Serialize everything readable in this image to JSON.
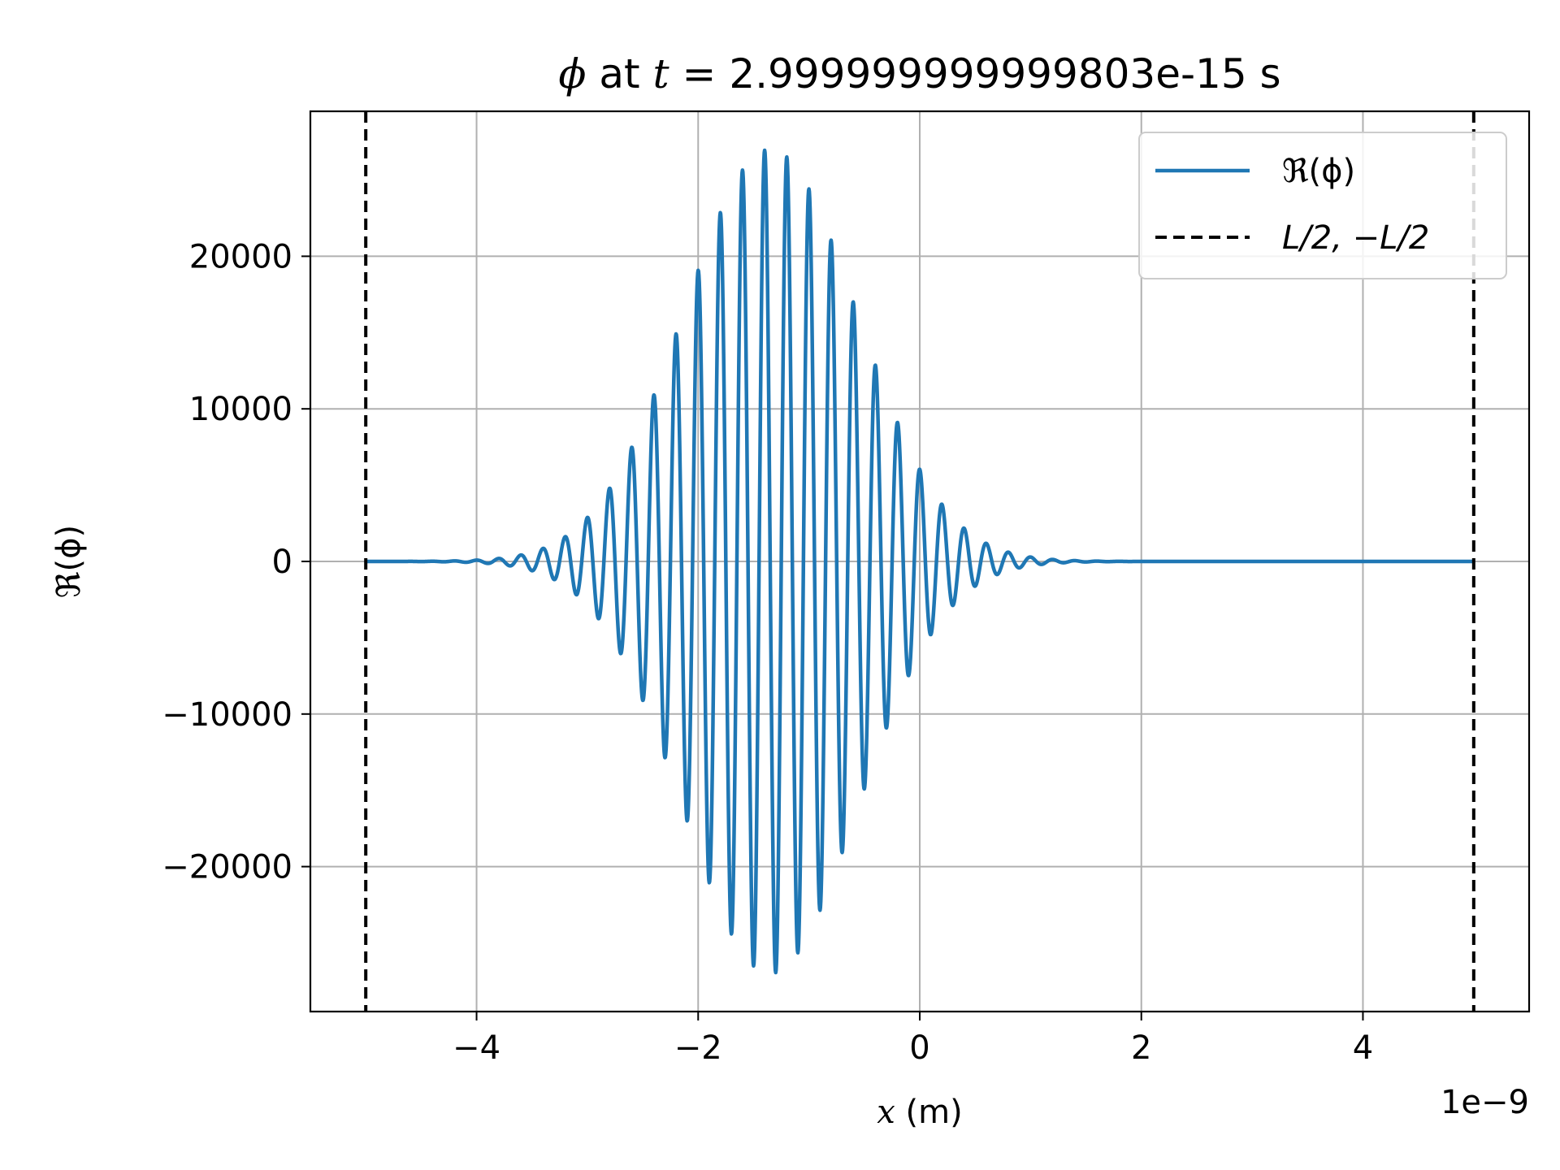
{
  "chart_data": {
    "type": "line",
    "title": "ϕ at t = 2.999999999999803e-15 s",
    "title_parts": {
      "symbol": "ϕ",
      "at": " at ",
      "t": "t",
      "eq": " = ",
      "value": "2.999999999999803e-15 s"
    },
    "xlabel": "x (m)",
    "xlabel_parts": {
      "var": "x",
      "unit": " (m)"
    },
    "ylabel": "ℜ(ϕ)",
    "x_offset_label": "1e−9",
    "xlim": [
      -5.5,
      5.5
    ],
    "ylim": [
      -29500,
      29500
    ],
    "x_ticks": [
      -4,
      -2,
      0,
      2,
      4
    ],
    "x_tick_labels": [
      "−4",
      "−2",
      "0",
      "2",
      "4"
    ],
    "y_ticks": [
      -20000,
      -10000,
      0,
      10000,
      20000
    ],
    "y_tick_labels": [
      "−20000",
      "−10000",
      "0",
      "10000",
      "20000"
    ],
    "grid": true,
    "legend_position": "top-right",
    "series": [
      {
        "name": "ℜ(ϕ)",
        "style": "solid",
        "color": "#1f77b4",
        "x_range": [
          -5,
          5
        ],
        "envelope": {
          "center": -1.35,
          "sigma": 0.78,
          "amplitude": 27000
        },
        "oscillation": {
          "wavenumber": 31.4,
          "phase": 1.5708
        }
      },
      {
        "name": "L/2, −L/2",
        "style": "dashed",
        "color": "#000000",
        "x_positions": [
          -5,
          5
        ]
      }
    ],
    "legend": [
      {
        "label": "ℜ(ϕ)",
        "color": "#1f77b4",
        "style": "solid"
      },
      {
        "label": "L/2, −L/2",
        "color": "#000000",
        "style": "dashed"
      }
    ]
  }
}
